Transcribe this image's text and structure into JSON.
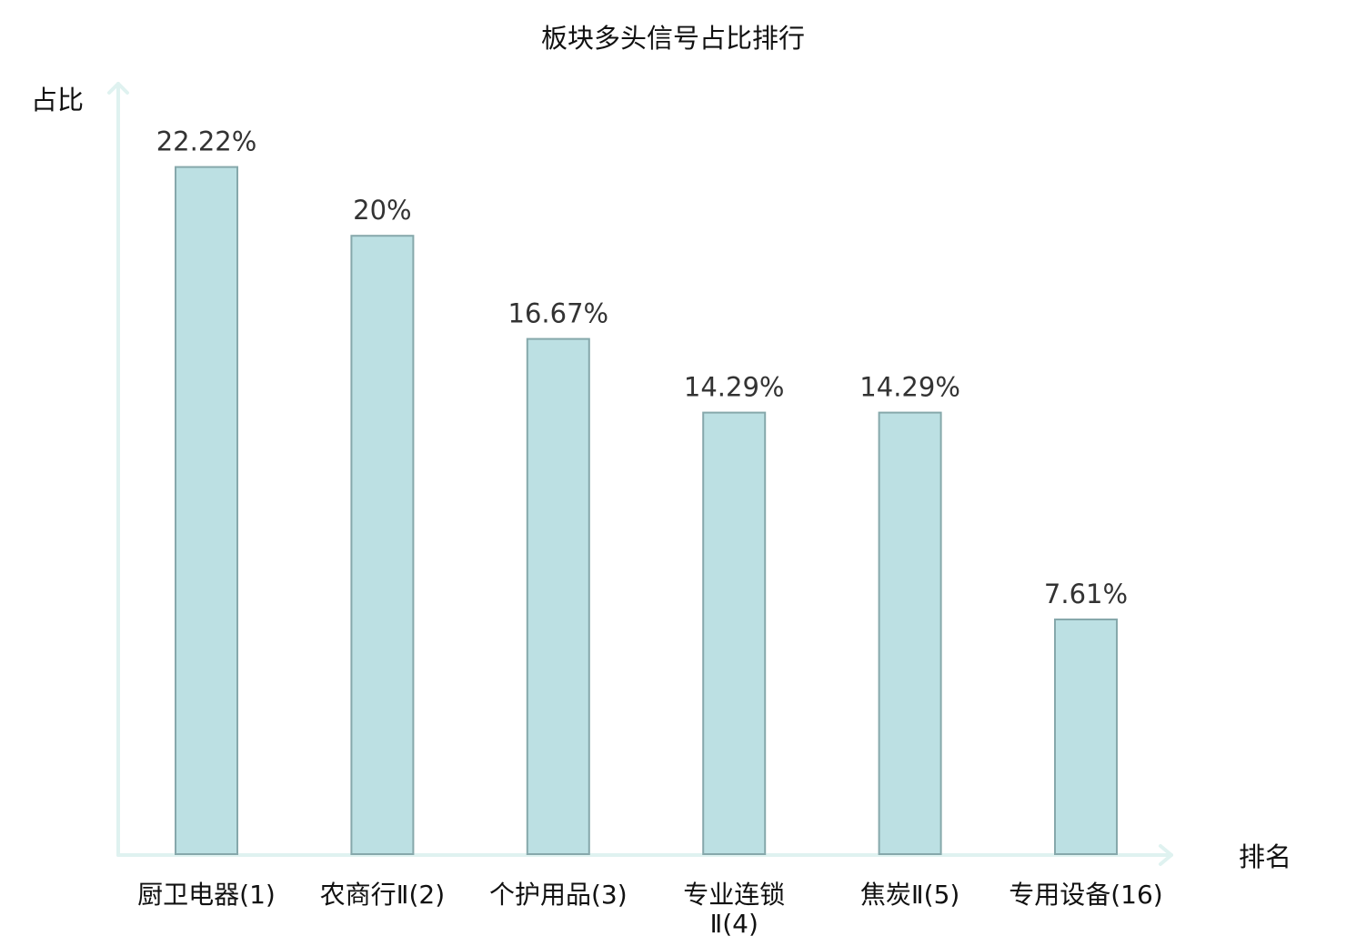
{
  "chart_data": {
    "type": "bar",
    "title": "板块多头信号占比排行",
    "xlabel": "排名",
    "ylabel": "占比",
    "categories": [
      [
        "厨卫电器(1)"
      ],
      [
        "农商行Ⅱ(2)"
      ],
      [
        "个护用品(3)"
      ],
      [
        "专业连锁",
        "Ⅱ(4)"
      ],
      [
        "焦炭Ⅱ(5)"
      ],
      [
        "专用设备(16)"
      ]
    ],
    "values": [
      22.22,
      20,
      16.67,
      14.29,
      14.29,
      7.61
    ],
    "value_labels": [
      "22.22%",
      "20%",
      "16.67%",
      "14.29%",
      "14.29%",
      "7.61%"
    ],
    "highlight_index": 5,
    "ylim": [
      0,
      25
    ],
    "grid": false,
    "legend": "none",
    "colors": {
      "bar_fill": "#bce0e3",
      "bar_stroke": "#86a8ab",
      "axis": "#dff2f0",
      "text": "#111111",
      "value_text": "#333333",
      "highlight_text": "#e8201f"
    }
  }
}
